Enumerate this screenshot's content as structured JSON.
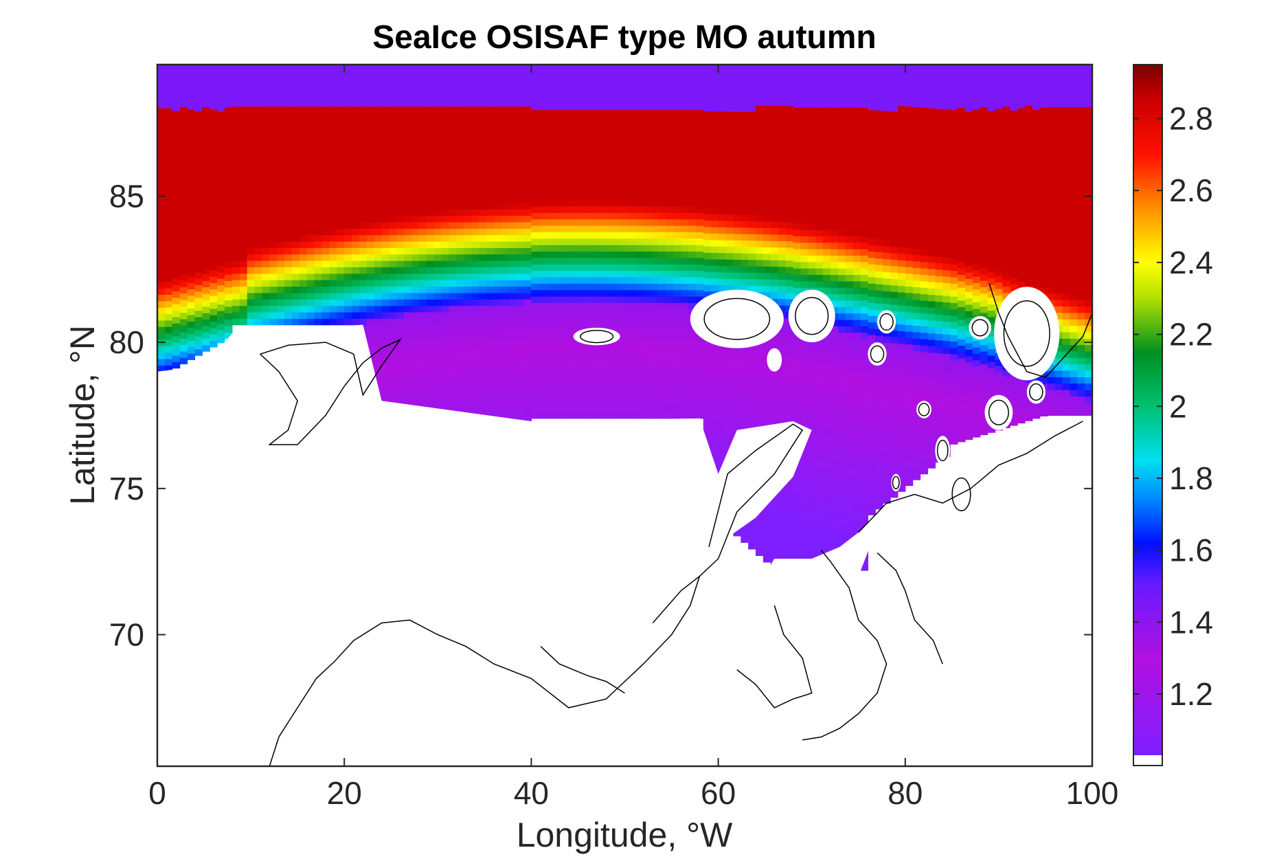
{
  "chart_data": {
    "type": "heatmap",
    "title": "SeaIce OSISAF type MO autumn",
    "xlabel": "Longitude, °W",
    "ylabel": "Latitude, °N",
    "xlim": [
      0,
      100
    ],
    "ylim": [
      65.5,
      89.5
    ],
    "xticks": [
      0,
      20,
      40,
      60,
      80,
      100
    ],
    "xtick_labels": [
      "0",
      "20",
      "40",
      "60",
      "80",
      "100"
    ],
    "yticks": [
      70,
      75,
      80,
      85
    ],
    "ytick_labels": [
      "70",
      "75",
      "80",
      "85"
    ],
    "colorbar": {
      "range": [
        1.03,
        2.95
      ],
      "ticks": [
        1.2,
        1.4,
        1.6,
        1.8,
        2,
        2.2,
        2.4,
        2.6,
        2.8
      ],
      "tick_labels": [
        "1.2",
        "1.4",
        "1.6",
        "1.8",
        "2",
        "2.2",
        "2.4",
        "2.6",
        "2.8"
      ],
      "colormap_stops": [
        {
          "value": 1.03,
          "color": "#7f1fff"
        },
        {
          "value": 1.3,
          "color": "#b010e0"
        },
        {
          "value": 1.5,
          "color": "#6a1bff"
        },
        {
          "value": 1.62,
          "color": "#0010ff"
        },
        {
          "value": 1.75,
          "color": "#0090ff"
        },
        {
          "value": 1.85,
          "color": "#00e0f0"
        },
        {
          "value": 2.0,
          "color": "#00c070"
        },
        {
          "value": 2.15,
          "color": "#009020"
        },
        {
          "value": 2.3,
          "color": "#b0e000"
        },
        {
          "value": 2.4,
          "color": "#ffff00"
        },
        {
          "value": 2.55,
          "color": "#ff9000"
        },
        {
          "value": 2.7,
          "color": "#ff1000"
        },
        {
          "value": 2.85,
          "color": "#cc0000"
        },
        {
          "value": 2.95,
          "color": "#7a0000"
        }
      ],
      "nan_color": "#ffffff"
    },
    "field_description": {
      "north_band_value": 1.45,
      "north_band_lat_min": 88.0,
      "thick_ice_value": 2.85,
      "ice_edge_value": 1.4,
      "land_color": "#ffffff",
      "coastline_color": "#000000"
    }
  }
}
